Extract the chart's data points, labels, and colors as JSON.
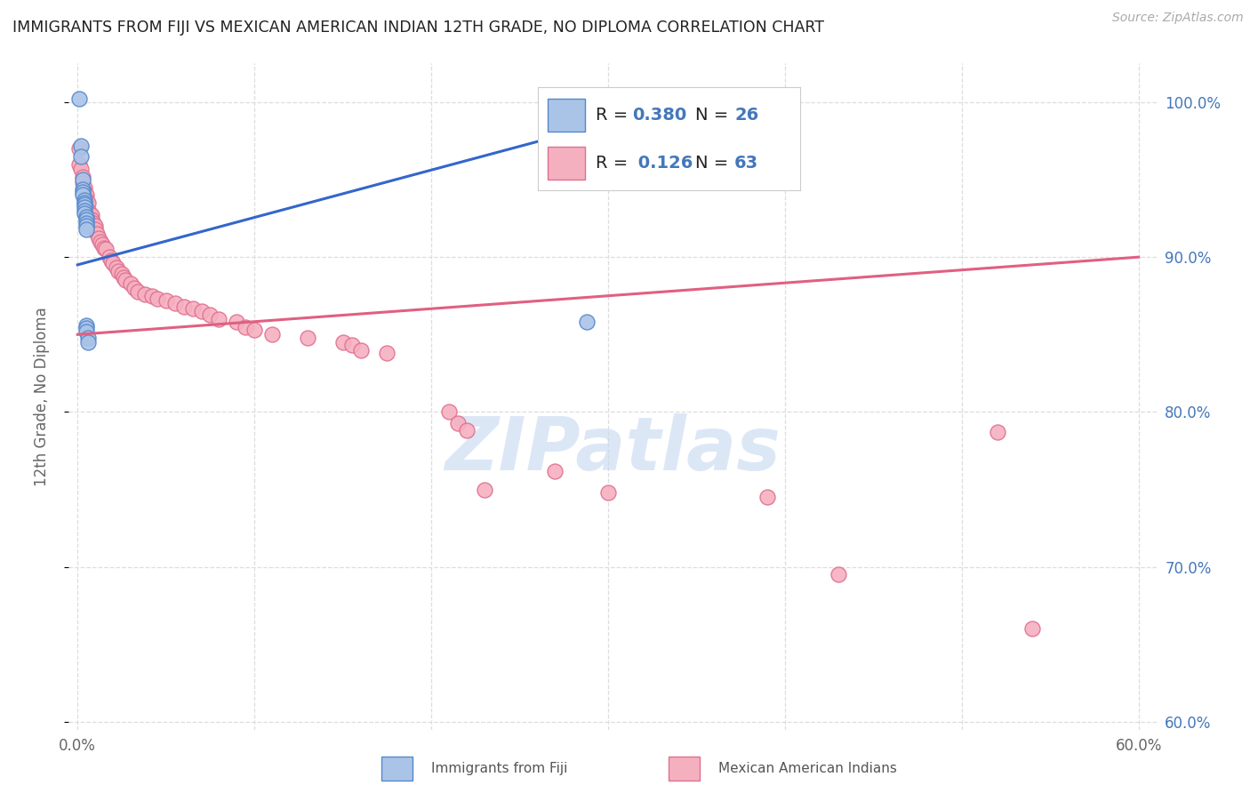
{
  "title": "IMMIGRANTS FROM FIJI VS MEXICAN AMERICAN INDIAN 12TH GRADE, NO DIPLOMA CORRELATION CHART",
  "source": "Source: ZipAtlas.com",
  "ylabel": "12th Grade, No Diploma",
  "x_ticks": [
    0.0,
    0.1,
    0.2,
    0.3,
    0.4,
    0.5,
    0.6
  ],
  "x_tick_labels": [
    "0.0%",
    "",
    "",
    "",
    "",
    "",
    "60.0%"
  ],
  "y_ticks": [
    0.6,
    0.7,
    0.8,
    0.9,
    1.0
  ],
  "y_tick_labels": [
    "60.0%",
    "70.0%",
    "80.0%",
    "90.0%",
    "100.0%"
  ],
  "xlim": [
    -0.005,
    0.61
  ],
  "ylim": [
    0.595,
    1.025
  ],
  "R_fiji": 0.38,
  "N_fiji": 26,
  "R_mexican": 0.126,
  "N_mexican": 63,
  "fiji_color": "#aac4e8",
  "fiji_edge_color": "#5588cc",
  "fiji_line_color": "#3366cc",
  "mexican_color": "#f5b0c0",
  "mexican_edge_color": "#e07090",
  "mexican_line_color": "#e06080",
  "background_color": "#ffffff",
  "grid_color": "#dddddd",
  "title_color": "#222222",
  "right_tick_color": "#4477bb",
  "fiji_scatter_x": [
    0.001,
    0.002,
    0.002,
    0.003,
    0.003,
    0.003,
    0.003,
    0.004,
    0.004,
    0.004,
    0.004,
    0.004,
    0.004,
    0.005,
    0.005,
    0.005,
    0.005,
    0.005,
    0.005,
    0.005,
    0.005,
    0.006,
    0.006,
    0.283,
    0.288,
    0.353
  ],
  "fiji_scatter_y": [
    1.002,
    0.972,
    0.965,
    0.95,
    0.944,
    0.942,
    0.94,
    0.937,
    0.935,
    0.934,
    0.932,
    0.93,
    0.928,
    0.926,
    0.924,
    0.922,
    0.92,
    0.918,
    0.856,
    0.854,
    0.852,
    0.848,
    0.845,
    0.981,
    0.858,
    1.003
  ],
  "mexican_scatter_x": [
    0.001,
    0.001,
    0.002,
    0.003,
    0.003,
    0.004,
    0.004,
    0.005,
    0.005,
    0.006,
    0.006,
    0.007,
    0.008,
    0.008,
    0.009,
    0.01,
    0.01,
    0.011,
    0.012,
    0.013,
    0.014,
    0.015,
    0.016,
    0.018,
    0.019,
    0.02,
    0.022,
    0.023,
    0.025,
    0.026,
    0.027,
    0.03,
    0.032,
    0.034,
    0.038,
    0.042,
    0.045,
    0.05,
    0.055,
    0.06,
    0.065,
    0.07,
    0.075,
    0.08,
    0.09,
    0.095,
    0.1,
    0.11,
    0.13,
    0.15,
    0.155,
    0.16,
    0.175,
    0.21,
    0.215,
    0.22,
    0.23,
    0.27,
    0.3,
    0.39,
    0.43,
    0.52,
    0.54
  ],
  "mexican_scatter_y": [
    0.97,
    0.96,
    0.957,
    0.952,
    0.948,
    0.945,
    0.942,
    0.94,
    0.937,
    0.935,
    0.93,
    0.928,
    0.927,
    0.924,
    0.922,
    0.92,
    0.918,
    0.915,
    0.912,
    0.91,
    0.908,
    0.906,
    0.905,
    0.9,
    0.898,
    0.896,
    0.893,
    0.891,
    0.889,
    0.887,
    0.885,
    0.883,
    0.88,
    0.878,
    0.876,
    0.875,
    0.873,
    0.872,
    0.87,
    0.868,
    0.867,
    0.865,
    0.863,
    0.86,
    0.858,
    0.855,
    0.853,
    0.85,
    0.848,
    0.845,
    0.843,
    0.84,
    0.838,
    0.8,
    0.793,
    0.788,
    0.75,
    0.762,
    0.748,
    0.745,
    0.695,
    0.787,
    0.66
  ],
  "fiji_line_x0": 0.0,
  "fiji_line_y0": 0.895,
  "fiji_line_x1": 0.353,
  "fiji_line_y1": 1.003,
  "mexican_line_x0": 0.0,
  "mexican_line_y0": 0.85,
  "mexican_line_x1": 0.6,
  "mexican_line_y1": 0.9,
  "watermark_text": "ZIPatlas",
  "watermark_color": "#c5d8f0",
  "legend_fiji_label": "R = 0.380   N = 26",
  "legend_mexican_label": "R =  0.126   N = 63"
}
